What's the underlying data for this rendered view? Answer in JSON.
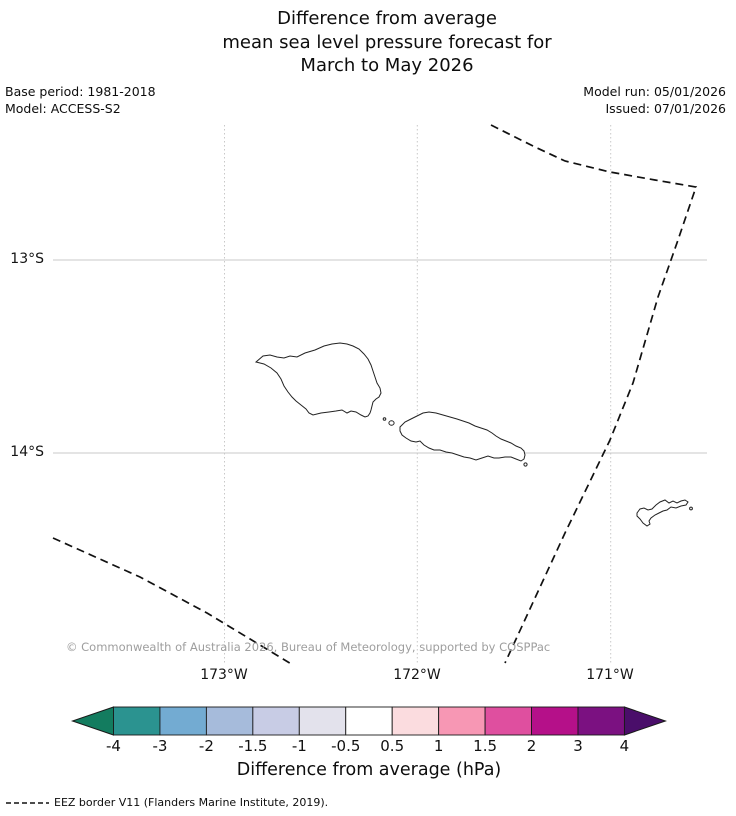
{
  "title": {
    "line1": "Difference from average",
    "line2": "mean sea level pressure forecast for",
    "line3": "March to May 2026"
  },
  "meta": {
    "base_period": "Base period: 1981-2018",
    "model": "Model: ACCESS-S2",
    "model_run": "Model run: 05/01/2026",
    "issued": "Issued: 07/01/2026"
  },
  "map": {
    "y_ticks": [
      "13°S",
      "14°S"
    ],
    "x_ticks": [
      "173°W",
      "172°W",
      "171°W"
    ],
    "features": [
      "Savai'i island outline",
      "Upolu island outline",
      "Tutuila island outline",
      "EEZ border dashed lines"
    ],
    "copyright": "© Commonwealth of Australia 2026, Bureau of Meteorology, supported by COSPPac"
  },
  "colorbar": {
    "label": "Difference from average (hPa)",
    "tick_labels": [
      "-4",
      "-3",
      "-2",
      "-1.5",
      "-1",
      "-0.5",
      "0.5",
      "1",
      "1.5",
      "2",
      "3",
      "4"
    ],
    "ticks": [
      -4,
      -3,
      -2,
      -1.5,
      -1,
      -0.5,
      0.5,
      1,
      1.5,
      2,
      3,
      4
    ],
    "segment_colors": [
      "#2b9390",
      "#73abd2",
      "#a6bbdb",
      "#c8cce5",
      "#e3e2ec",
      "#ffffff",
      "#fbdcdf",
      "#f797b4",
      "#df4f9f",
      "#b51089",
      "#7b1181"
    ],
    "arrow_left_color": "#137c5f",
    "arrow_right_color": "#4a0e6a",
    "outline_color": "#1a1a1a"
  },
  "legend": {
    "eez": "EEZ border V11 (Flanders Marine Institute, 2019)."
  },
  "style_colors": {
    "gridline": "#c8c8c8",
    "coastline": "#222222",
    "eez_dash": "#111111",
    "copyright_gray": "#9e9e9e"
  }
}
